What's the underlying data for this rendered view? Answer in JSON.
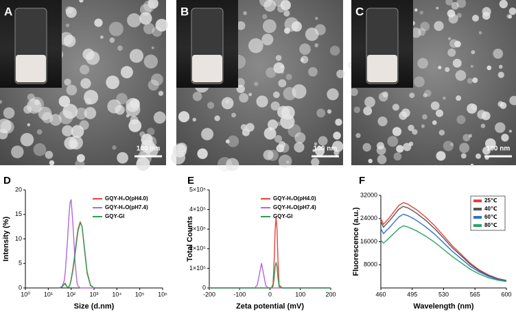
{
  "panels": [
    {
      "label": "A",
      "scale_bar": "100 nm"
    },
    {
      "label": "B",
      "scale_bar": "100 nm"
    },
    {
      "label": "C",
      "scale_bar": "100 nm"
    }
  ],
  "chart_data": [
    {
      "type": "line",
      "panel_label": "D",
      "x_label": "Size (d.nm)",
      "y_label": "Intensity (%)",
      "xscale": "log",
      "xlim": [
        1,
        1000000
      ],
      "xticks": [
        {
          "value": 1,
          "label": "10⁰"
        },
        {
          "value": 10,
          "label": "10¹"
        },
        {
          "value": 100,
          "label": "10²"
        },
        {
          "value": 1000,
          "label": "10³"
        },
        {
          "value": 10000,
          "label": "10⁴"
        },
        {
          "value": 100000,
          "label": "10⁵"
        },
        {
          "value": 1000000,
          "label": "10⁶"
        }
      ],
      "ylim": [
        0,
        20
      ],
      "yticks": [
        0,
        5,
        10,
        15,
        20
      ],
      "legend": "upper right",
      "x": [
        30,
        40,
        50,
        55,
        60,
        70,
        80,
        90,
        100,
        120,
        150,
        180,
        200,
        250,
        300,
        400,
        500,
        700,
        1000
      ],
      "series": [
        {
          "name": "GQY-H₂O(pH4.0)",
          "color": "#e8403c",
          "values": [
            0,
            0.2,
            0.8,
            1,
            0.6,
            0.1,
            0.2,
            0.8,
            1.8,
            4,
            7.5,
            10.5,
            12,
            13.5,
            12.5,
            7,
            3,
            0.5,
            0
          ]
        },
        {
          "name": "GQY-H₂O(pH7.4)",
          "color": "#b266d9",
          "values": [
            0,
            0.3,
            1.5,
            3,
            5.5,
            10,
            14.5,
            17.5,
            18,
            13,
            5,
            1.2,
            0.4,
            0,
            0,
            0,
            0,
            0,
            0
          ]
        },
        {
          "name": "GQY-Gl",
          "color": "#2e9e55",
          "values": [
            0,
            0.2,
            0.7,
            0.9,
            0.5,
            0.1,
            0.2,
            0.7,
            1.6,
            3.6,
            7,
            10,
            11.6,
            13.3,
            12.6,
            7.4,
            3.3,
            0.6,
            0
          ]
        }
      ]
    },
    {
      "type": "line",
      "panel_label": "E",
      "x_label": "Zeta potential (mV)",
      "y_label": "Total Counts",
      "xlim": [
        -200,
        200
      ],
      "xticks": [
        -200,
        -100,
        0,
        100,
        200
      ],
      "ylim": [
        0,
        500000
      ],
      "yticks": [
        0,
        {
          "value": 100000,
          "label": "1×10⁵"
        },
        {
          "value": 200000,
          "label": "2×10⁵"
        },
        {
          "value": 300000,
          "label": "3×10⁵"
        },
        {
          "value": 400000,
          "label": "4×10⁵"
        },
        {
          "value": 500000,
          "label": "5×10⁵"
        }
      ],
      "legend": "upper right",
      "x": [
        -200,
        -50,
        -42,
        -35,
        -28,
        -21,
        -14,
        -5,
        5,
        10,
        14,
        17,
        20,
        23,
        26,
        30,
        40,
        200
      ],
      "series": [
        {
          "name": "GQY-H₂O(pH4.0)",
          "color": "#e8403c",
          "values": [
            0,
            0,
            0,
            0,
            0,
            0,
            0,
            0,
            0,
            20000,
            150000,
            300000,
            360000,
            300000,
            150000,
            15000,
            0,
            0
          ]
        },
        {
          "name": "GQY-H₂O(pH7.4)",
          "color": "#b266d9",
          "values": [
            0,
            0,
            15000,
            70000,
            125000,
            70000,
            12000,
            0,
            0,
            0,
            0,
            0,
            0,
            0,
            0,
            0,
            0,
            0
          ]
        },
        {
          "name": "GQY-Gl",
          "color": "#2e9e55",
          "values": [
            0,
            0,
            0,
            0,
            0,
            0,
            0,
            0,
            0,
            8000,
            55000,
            110000,
            130000,
            110000,
            55000,
            6000,
            0,
            0
          ]
        }
      ]
    },
    {
      "type": "line",
      "panel_label": "F",
      "x_label": "Wavelength (nm)",
      "y_label": "Fluorescence (a.u.)",
      "xlim": [
        460,
        600
      ],
      "xticks": [
        460,
        495,
        530,
        565,
        600
      ],
      "ylim": [
        0,
        32000
      ],
      "yticks": [
        8000,
        16000,
        24000,
        32000
      ],
      "legend": "upper right",
      "x": [
        460,
        463,
        466,
        470,
        475,
        480,
        485,
        490,
        495,
        500,
        510,
        520,
        530,
        540,
        550,
        560,
        570,
        580,
        590,
        600
      ],
      "series": [
        {
          "name": "25℃",
          "color": "#e8403c",
          "values": [
            24000,
            22000,
            23000,
            24500,
            26500,
            28500,
            29500,
            29000,
            28000,
            27000,
            24500,
            21500,
            18000,
            14500,
            11500,
            8500,
            6200,
            4500,
            3300,
            2600
          ]
        },
        {
          "name": "40℃",
          "color": "#555555",
          "values": [
            23000,
            21000,
            22000,
            23400,
            25300,
            27200,
            28200,
            27700,
            26800,
            25800,
            23400,
            20500,
            17200,
            13800,
            11000,
            8100,
            5900,
            4300,
            3200,
            2500
          ]
        },
        {
          "name": "60℃",
          "color": "#2f6fd6",
          "values": [
            20500,
            18800,
            19800,
            21000,
            22800,
            24500,
            25500,
            25000,
            24200,
            23300,
            21100,
            18600,
            15600,
            12600,
            10000,
            7400,
            5500,
            4000,
            3000,
            2400
          ]
        },
        {
          "name": "80℃",
          "color": "#2aa36a",
          "values": [
            16500,
            15500,
            16300,
            17500,
            19000,
            20500,
            21500,
            21100,
            20400,
            19700,
            17900,
            15800,
            13300,
            10800,
            8600,
            6400,
            4800,
            3500,
            2700,
            2200
          ]
        }
      ]
    }
  ]
}
